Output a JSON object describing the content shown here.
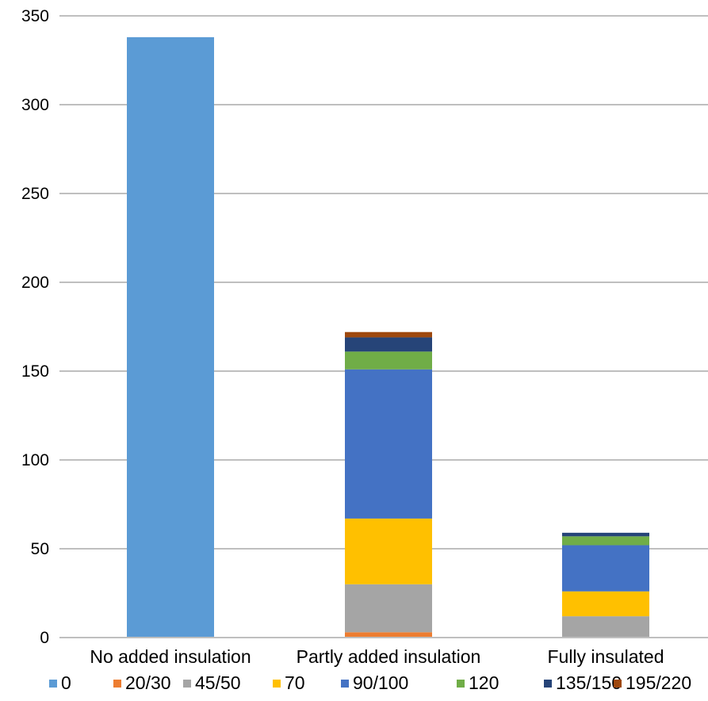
{
  "chart_data": {
    "type": "stacked-bar",
    "categories": [
      "No added insulation",
      "Partly added insulation",
      "Fully insulated"
    ],
    "series": [
      {
        "name": "0",
        "values": [
          338,
          0,
          0
        ],
        "color": "#5b9bd5"
      },
      {
        "name": "20/30",
        "values": [
          0,
          3,
          0
        ],
        "color": "#ed7d31"
      },
      {
        "name": "45/50",
        "values": [
          0,
          27,
          12
        ],
        "color": "#a5a5a5"
      },
      {
        "name": "70",
        "values": [
          0,
          37,
          14
        ],
        "color": "#ffc000"
      },
      {
        "name": "90/100",
        "values": [
          0,
          84,
          26
        ],
        "color": "#4472c4"
      },
      {
        "name": "120",
        "values": [
          0,
          10,
          5
        ],
        "color": "#70ad47"
      },
      {
        "name": "135/150",
        "values": [
          0,
          8,
          2
        ],
        "color": "#264478"
      },
      {
        "name": "195/220",
        "values": [
          0,
          3,
          0
        ],
        "color": "#9e480e"
      }
    ],
    "ylim": [
      0,
      350
    ],
    "yticks": [
      0,
      50,
      100,
      150,
      200,
      250,
      300,
      350
    ],
    "grid": true,
    "legend_position": "bottom",
    "gridline_color": "#bfbfbf"
  }
}
